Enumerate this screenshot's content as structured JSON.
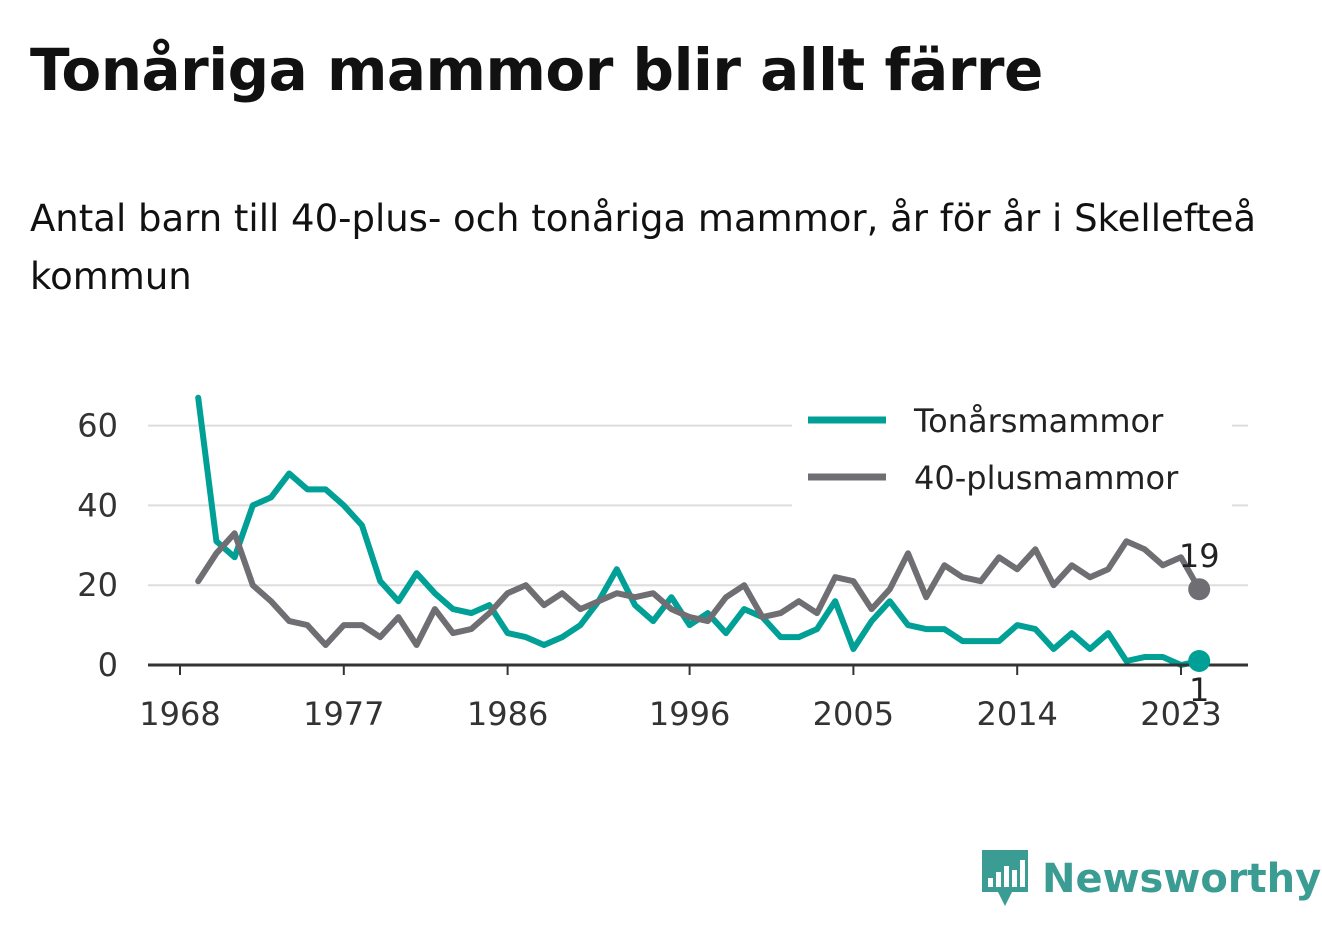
{
  "title": "Tonåriga mammor blir allt färre",
  "subtitle": "Antal barn till 40-plus- och tonåriga mammor, år för år i Skellefteå kommun",
  "brand": {
    "name": "Newsworthy",
    "icon": "newsworthy-logo-icon",
    "color": "#3a9c92"
  },
  "chart_data": {
    "type": "line",
    "x_ticks": [
      1968,
      1977,
      1986,
      1996,
      2005,
      2014,
      2023
    ],
    "y_ticks": [
      0,
      20,
      40,
      60
    ],
    "xlim": [
      1968,
      2025
    ],
    "ylim": [
      0,
      67
    ],
    "grid": true,
    "legend_position": "top-right",
    "x": [
      1969,
      1970,
      1971,
      1972,
      1973,
      1974,
      1975,
      1976,
      1977,
      1978,
      1979,
      1980,
      1981,
      1982,
      1983,
      1984,
      1985,
      1986,
      1987,
      1988,
      1989,
      1990,
      1991,
      1992,
      1993,
      1994,
      1995,
      1996,
      1997,
      1998,
      1999,
      2000,
      2001,
      2002,
      2003,
      2004,
      2005,
      2006,
      2007,
      2008,
      2009,
      2010,
      2011,
      2012,
      2013,
      2014,
      2015,
      2016,
      2017,
      2018,
      2019,
      2020,
      2021,
      2022,
      2023,
      2024
    ],
    "series": [
      {
        "name": "Tonårsmammor",
        "color": "#00a096",
        "values": [
          67,
          31,
          27,
          40,
          42,
          48,
          44,
          44,
          40,
          35,
          21,
          16,
          23,
          18,
          14,
          13,
          15,
          8,
          7,
          5,
          7,
          10,
          16,
          24,
          15,
          11,
          17,
          10,
          13,
          8,
          14,
          12,
          7,
          7,
          9,
          16,
          4,
          11,
          16,
          10,
          9,
          9,
          6,
          6,
          6,
          10,
          9,
          4,
          8,
          4,
          8,
          1,
          2,
          2,
          0,
          1
        ],
        "end_label": "1"
      },
      {
        "name": "40-plusmammor",
        "color": "#6e6e73",
        "values": [
          21,
          28,
          33,
          20,
          16,
          11,
          10,
          5,
          10,
          10,
          7,
          12,
          5,
          14,
          8,
          9,
          13,
          18,
          20,
          15,
          18,
          14,
          16,
          18,
          17,
          18,
          14,
          12,
          11,
          17,
          20,
          12,
          13,
          16,
          13,
          22,
          21,
          14,
          19,
          28,
          17,
          25,
          22,
          21,
          27,
          24,
          29,
          20,
          25,
          22,
          24,
          31,
          29,
          25,
          27,
          19
        ],
        "end_label": "19"
      }
    ]
  }
}
